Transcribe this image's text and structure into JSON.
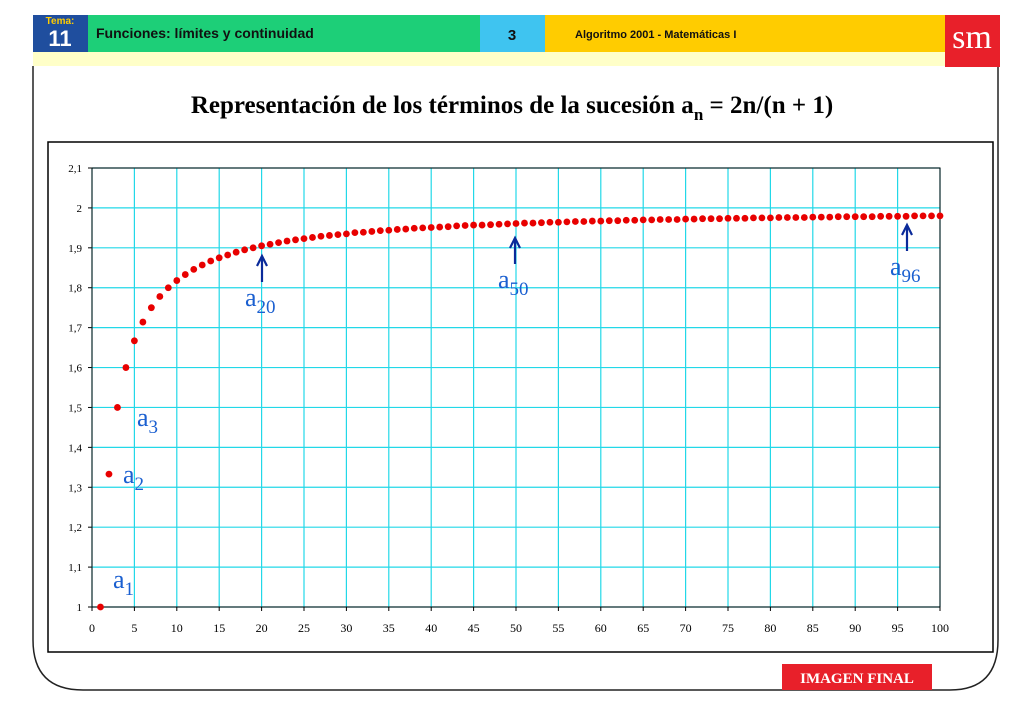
{
  "header": {
    "tema_label": "Tema:",
    "tema_number": "11",
    "topic": "Funciones: límites y continuidad",
    "page": "3",
    "book": "Algoritmo 2001 - Matemáticas I",
    "logo": "sm"
  },
  "footer": "IMAGEN FINAL",
  "chart_data": {
    "type": "scatter",
    "title": {
      "main": "Representación de los términos de la sucesión a",
      "sub": "n",
      "rest": " = 2n/(n + 1)"
    },
    "color": "#e80000",
    "grid": true,
    "x": [
      1,
      2,
      3,
      4,
      5,
      6,
      7,
      8,
      9,
      10,
      11,
      12,
      13,
      14,
      15,
      16,
      17,
      18,
      19,
      20,
      21,
      22,
      23,
      24,
      25,
      26,
      27,
      28,
      29,
      30,
      31,
      32,
      33,
      34,
      35,
      36,
      37,
      38,
      39,
      40,
      41,
      42,
      43,
      44,
      45,
      46,
      47,
      48,
      49,
      50,
      51,
      52,
      53,
      54,
      55,
      56,
      57,
      58,
      59,
      60,
      61,
      62,
      63,
      64,
      65,
      66,
      67,
      68,
      69,
      70,
      71,
      72,
      73,
      74,
      75,
      76,
      77,
      78,
      79,
      80,
      81,
      82,
      83,
      84,
      85,
      86,
      87,
      88,
      89,
      90,
      91,
      92,
      93,
      94,
      95,
      96,
      97,
      98,
      99,
      100
    ],
    "values": [
      1,
      1.333,
      1.5,
      1.6,
      1.667,
      1.714,
      1.75,
      1.778,
      1.8,
      1.818,
      1.833,
      1.846,
      1.857,
      1.867,
      1.875,
      1.882,
      1.889,
      1.895,
      1.9,
      1.905,
      1.909,
      1.913,
      1.917,
      1.92,
      1.923,
      1.926,
      1.929,
      1.931,
      1.933,
      1.935,
      1.938,
      1.939,
      1.941,
      1.943,
      1.944,
      1.946,
      1.947,
      1.949,
      1.95,
      1.951,
      1.952,
      1.953,
      1.955,
      1.956,
      1.957,
      1.957,
      1.958,
      1.959,
      1.96,
      1.961,
      1.962,
      1.962,
      1.963,
      1.964,
      1.964,
      1.965,
      1.966,
      1.966,
      1.967,
      1.967,
      1.968,
      1.968,
      1.969,
      1.969,
      1.97,
      1.97,
      1.971,
      1.971,
      1.971,
      1.972,
      1.972,
      1.973,
      1.973,
      1.973,
      1.974,
      1.974,
      1.974,
      1.975,
      1.975,
      1.975,
      1.976,
      1.976,
      1.976,
      1.976,
      1.977,
      1.977,
      1.977,
      1.978,
      1.978,
      1.978,
      1.978,
      1.978,
      1.979,
      1.979,
      1.979,
      1.979,
      1.98,
      1.98,
      1.98,
      1.98
    ],
    "xlim": [
      0,
      100
    ],
    "xticks": [
      0,
      5,
      10,
      15,
      20,
      25,
      30,
      35,
      40,
      45,
      50,
      55,
      60,
      65,
      70,
      75,
      80,
      85,
      90,
      95,
      100
    ],
    "ylim": [
      1,
      2.1
    ],
    "yticks": [
      1,
      {
        "value": 1.1,
        "label": "1,1"
      },
      {
        "value": 1.2,
        "label": "1,2"
      },
      {
        "value": 1.3,
        "label": "1,3"
      },
      {
        "value": 1.4,
        "label": "1,4"
      },
      {
        "value": 1.5,
        "label": "1,5"
      },
      {
        "value": 1.6,
        "label": "1,6"
      },
      {
        "value": 1.7,
        "label": "1,7"
      },
      {
        "value": 1.8,
        "label": "1,8"
      },
      {
        "value": 1.9,
        "label": "1,9"
      },
      2,
      {
        "value": 2.1,
        "label": "2,1"
      }
    ],
    "annotations": [
      {
        "text": "a",
        "sub": "1"
      },
      {
        "text": "a",
        "sub": "2"
      },
      {
        "text": "a",
        "sub": "3"
      },
      {
        "text": "a",
        "sub": "20"
      },
      {
        "text": "a",
        "sub": "50"
      },
      {
        "text": "a",
        "sub": "96"
      }
    ]
  }
}
